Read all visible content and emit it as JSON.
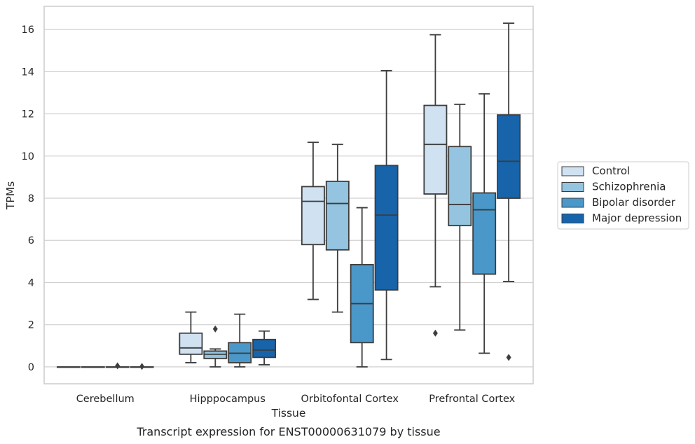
{
  "chart_data": {
    "type": "box",
    "caption": "Transcript expression for ENST00000631079 by tissue",
    "xlabel": "Tissue",
    "ylabel": "TPMs",
    "ylim": [
      -0.8,
      17.1
    ],
    "yticks": [
      0,
      2,
      4,
      6,
      8,
      10,
      12,
      14,
      16
    ],
    "grid": true,
    "legend_position": "right",
    "categories": [
      "Cerebellum",
      "Hipppocampus",
      "Orbitofontal Cortex",
      "Prefrontal Cortex"
    ],
    "series": [
      {
        "name": "Control",
        "color": "#d0e1f2",
        "boxes": [
          {
            "whislo": 0,
            "q1": 0,
            "med": 0,
            "q3": 0,
            "whishi": 0,
            "fliers": []
          },
          {
            "whislo": 0.2,
            "q1": 0.6,
            "med": 0.9,
            "q3": 1.6,
            "whishi": 2.6,
            "fliers": []
          },
          {
            "whislo": 3.2,
            "q1": 5.8,
            "med": 7.85,
            "q3": 8.55,
            "whishi": 10.65,
            "fliers": []
          },
          {
            "whislo": 3.8,
            "q1": 8.2,
            "med": 10.55,
            "q3": 12.4,
            "whishi": 15.75,
            "fliers": [
              1.6
            ]
          }
        ]
      },
      {
        "name": "Schizophrenia",
        "color": "#94c4df",
        "boxes": [
          {
            "whislo": 0,
            "q1": 0,
            "med": 0,
            "q3": 0,
            "whishi": 0,
            "fliers": []
          },
          {
            "whislo": 0,
            "q1": 0.4,
            "med": 0.6,
            "q3": 0.75,
            "whishi": 0.85,
            "fliers": [
              1.8
            ]
          },
          {
            "whislo": 2.6,
            "q1": 5.55,
            "med": 7.75,
            "q3": 8.8,
            "whishi": 10.55,
            "fliers": []
          },
          {
            "whislo": 1.75,
            "q1": 6.7,
            "med": 7.7,
            "q3": 10.45,
            "whishi": 12.45,
            "fliers": []
          }
        ]
      },
      {
        "name": "Bipolar disorder",
        "color": "#4a98c9",
        "boxes": [
          {
            "whislo": 0,
            "q1": 0,
            "med": 0,
            "q3": 0,
            "whishi": 0,
            "fliers": [
              0.05
            ]
          },
          {
            "whislo": 0,
            "q1": 0.2,
            "med": 0.65,
            "q3": 1.15,
            "whishi": 2.5,
            "fliers": []
          },
          {
            "whislo": 0,
            "q1": 1.15,
            "med": 3.0,
            "q3": 4.85,
            "whishi": 7.55,
            "fliers": []
          },
          {
            "whislo": 0.65,
            "q1": 4.4,
            "med": 7.45,
            "q3": 8.25,
            "whishi": 12.95,
            "fliers": []
          }
        ]
      },
      {
        "name": "Major depression",
        "color": "#1764ab",
        "boxes": [
          {
            "whislo": 0,
            "q1": 0,
            "med": 0,
            "q3": 0,
            "whishi": 0,
            "fliers": [
              0.02
            ]
          },
          {
            "whislo": 0.1,
            "q1": 0.45,
            "med": 0.8,
            "q3": 1.3,
            "whishi": 1.7,
            "fliers": []
          },
          {
            "whislo": 0.35,
            "q1": 3.65,
            "med": 7.2,
            "q3": 9.55,
            "whishi": 14.05,
            "fliers": []
          },
          {
            "whislo": 4.05,
            "q1": 8.0,
            "med": 9.75,
            "q3": 11.95,
            "whishi": 16.3,
            "fliers": [
              0.45
            ]
          }
        ]
      }
    ]
  }
}
